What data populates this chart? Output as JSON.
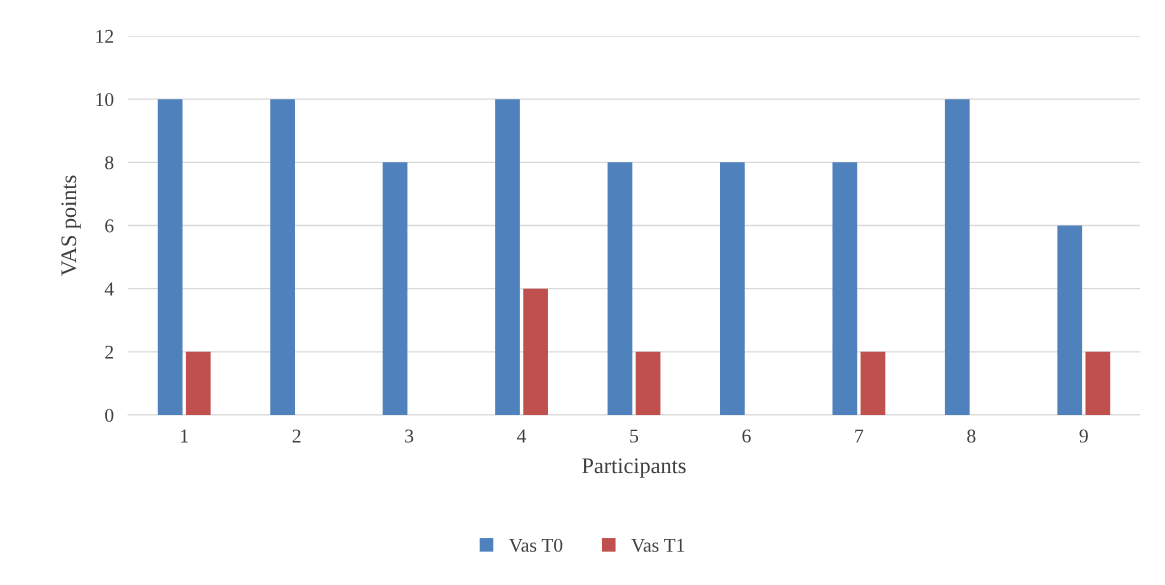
{
  "chart_data": {
    "type": "bar",
    "xlabel": "Participants",
    "ylabel": "VAS points",
    "categories": [
      "1",
      "2",
      "3",
      "4",
      "5",
      "6",
      "7",
      "8",
      "9"
    ],
    "series": [
      {
        "name": "Vas T0",
        "color": "#4f81bd",
        "values": [
          10,
          10,
          8,
          10,
          8,
          8,
          8,
          10,
          6
        ]
      },
      {
        "name": "Vas T1",
        "color": "#c0504d",
        "values": [
          2,
          0,
          0,
          4,
          2,
          0,
          2,
          0,
          2
        ]
      }
    ],
    "ylim": [
      0,
      12
    ],
    "yticks": [
      0,
      2,
      4,
      6,
      8,
      10,
      12
    ],
    "grid": "y",
    "legend": "bottom"
  }
}
